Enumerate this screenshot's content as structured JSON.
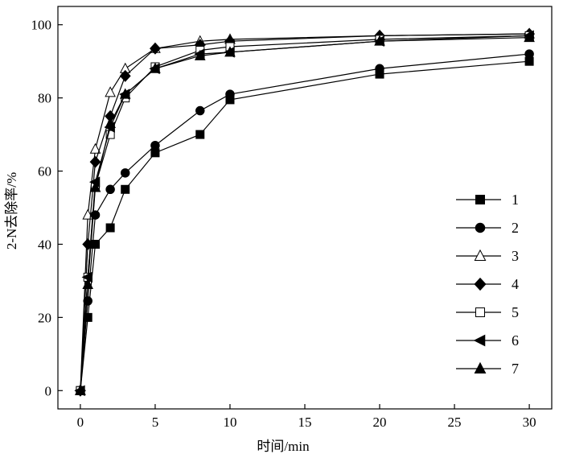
{
  "chart_data": {
    "type": "line",
    "xlabel": "时间/min",
    "ylabel": "2-N去除率/%",
    "xlim": [
      -1.5,
      31.5
    ],
    "ylim": [
      -5,
      105
    ],
    "xticks": [
      0,
      5,
      10,
      15,
      20,
      25,
      30
    ],
    "yticks": [
      0,
      20,
      40,
      60,
      80,
      100
    ],
    "grid": false,
    "legend_position": "right",
    "series": [
      {
        "name": "1",
        "marker": "square-filled",
        "x": [
          0,
          0.5,
          1,
          2,
          3,
          5,
          8,
          10,
          20,
          30
        ],
        "y": [
          0,
          20,
          40,
          44.5,
          55,
          65,
          70,
          79.5,
          86.5,
          90
        ]
      },
      {
        "name": "2",
        "marker": "circle-filled",
        "x": [
          0,
          0.5,
          1,
          2,
          3,
          5,
          8,
          10,
          20,
          30
        ],
        "y": [
          0,
          24.5,
          48,
          55,
          59.5,
          67,
          76.5,
          81,
          88,
          92
        ]
      },
      {
        "name": "3",
        "marker": "triangle-open",
        "x": [
          0,
          0.5,
          1,
          2,
          3,
          5,
          8,
          10,
          20,
          30
        ],
        "y": [
          0,
          48,
          66,
          81.5,
          88,
          93.5,
          95.5,
          96,
          97,
          97.5
        ]
      },
      {
        "name": "4",
        "marker": "diamond-filled",
        "x": [
          0,
          0.5,
          1,
          2,
          3,
          5,
          8,
          10,
          20,
          30
        ],
        "y": [
          0,
          40,
          62.5,
          75,
          86,
          93.5,
          94.5,
          95.5,
          97,
          97.5
        ]
      },
      {
        "name": "5",
        "marker": "square-open",
        "x": [
          0,
          0.5,
          1,
          2,
          3,
          5,
          8,
          10,
          20,
          30
        ],
        "y": [
          0,
          31,
          56,
          70,
          80,
          88.5,
          93,
          94,
          96,
          97
        ]
      },
      {
        "name": "6",
        "marker": "triangle-left-filled",
        "x": [
          0,
          0.5,
          1,
          2,
          3,
          5,
          8,
          10,
          20,
          30
        ],
        "y": [
          0,
          31,
          57,
          72,
          81,
          88,
          92,
          92.5,
          95.5,
          97
        ]
      },
      {
        "name": "7",
        "marker": "triangle-filled",
        "x": [
          0,
          0.5,
          1,
          2,
          3,
          5,
          8,
          10,
          20,
          30
        ],
        "y": [
          0,
          29,
          55.5,
          73,
          81,
          88,
          91.5,
          92.5,
          95.5,
          96.5
        ]
      }
    ]
  }
}
